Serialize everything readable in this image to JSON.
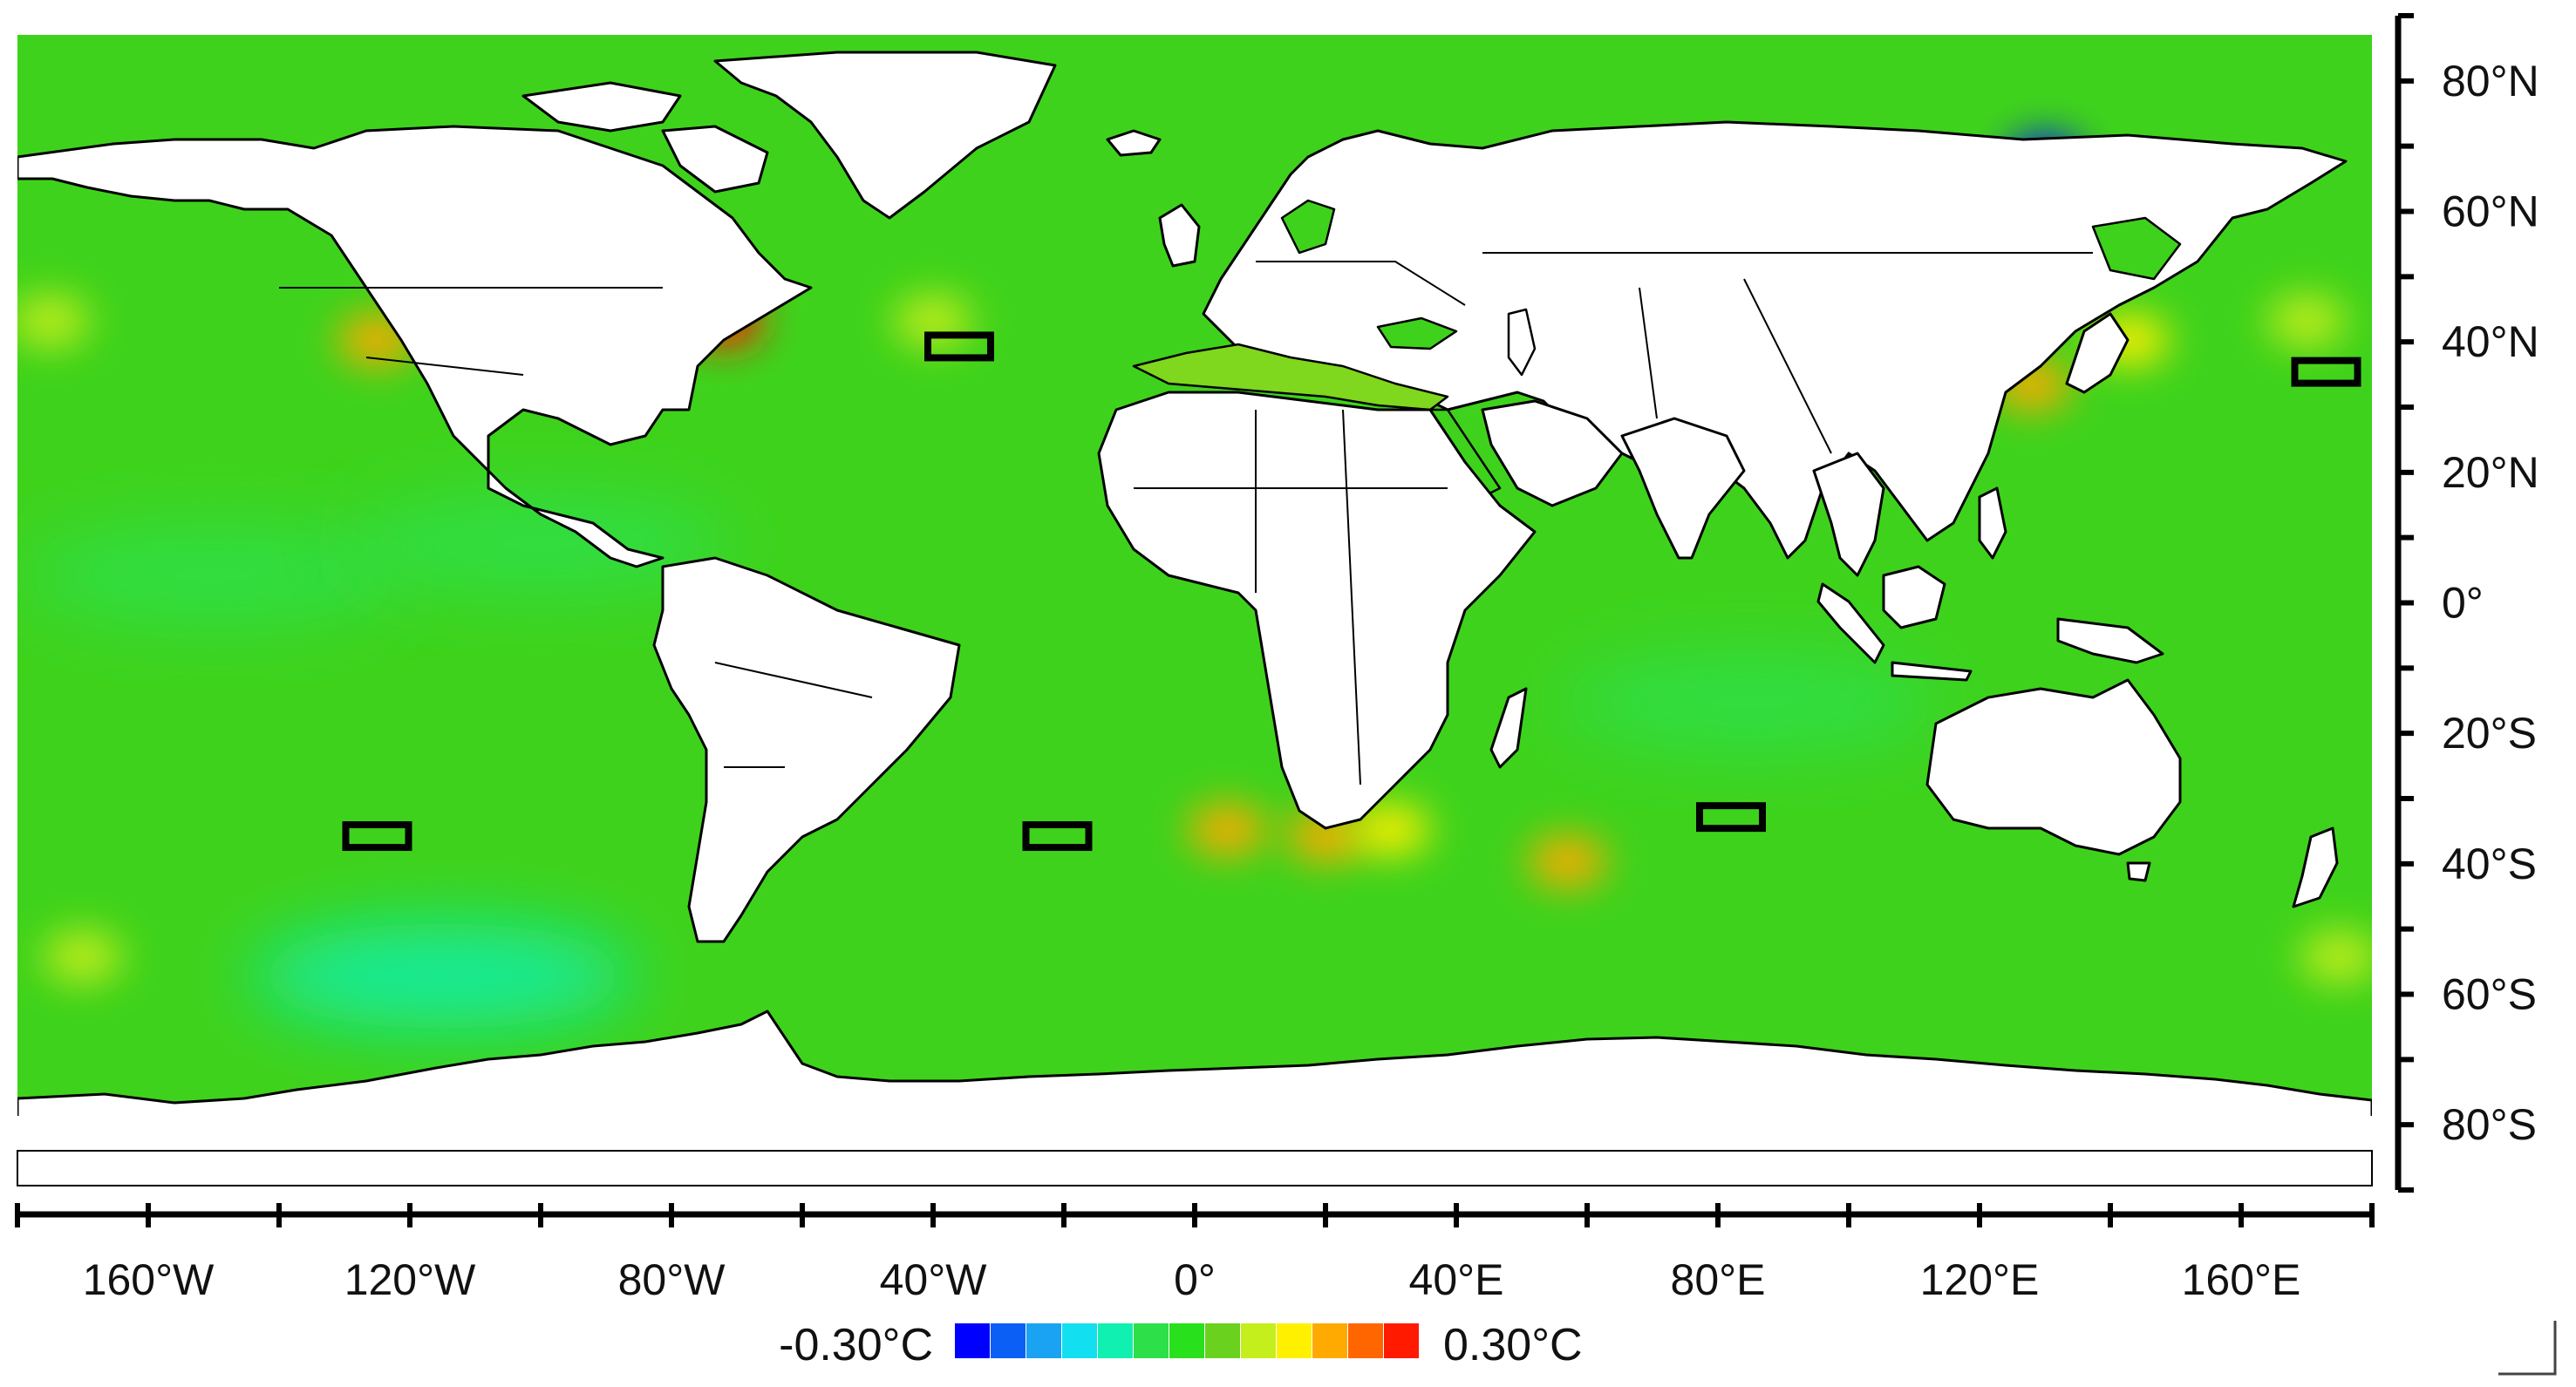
{
  "map": {
    "projection": "equirectangular",
    "extent": {
      "lon_min": -180,
      "lon_max": 180,
      "lat_min": -90,
      "lat_max": 90
    },
    "field": "sea surface temperature",
    "ocean_base_color": "#3fd21c",
    "land_color": "#ffffff",
    "coastline_color": "#000000",
    "hotspots": [
      {
        "lon": -72,
        "lat": 40,
        "level": 0.3
      },
      {
        "lon": -125,
        "lat": 37,
        "level": 0.18
      },
      {
        "lon": 128,
        "lat": 30,
        "level": 0.2
      },
      {
        "lon": 143,
        "lat": 37,
        "level": 0.15
      },
      {
        "lon": 5,
        "lat": -40,
        "level": 0.2
      },
      {
        "lon": 20,
        "lat": -41,
        "level": 0.2
      },
      {
        "lon": 30,
        "lat": -40,
        "level": 0.15
      },
      {
        "lon": 57,
        "lat": -45,
        "level": 0.18
      },
      {
        "lon": -40,
        "lat": 40,
        "level": 0.08
      },
      {
        "lon": -170,
        "lat": -60,
        "level": 0.1
      },
      {
        "lon": 175,
        "lat": -60,
        "level": 0.1
      },
      {
        "lon": -175,
        "lat": 40,
        "level": 0.08
      },
      {
        "lon": 170,
        "lat": 40,
        "level": 0.08
      },
      {
        "lon": 130,
        "lat": 65,
        "level": -0.3
      }
    ],
    "coldspots": [
      {
        "lon": -115,
        "lat": -63,
        "level": -0.12
      },
      {
        "lon": -150,
        "lat": 0,
        "level": -0.06
      },
      {
        "lon": 85,
        "lat": -20,
        "level": -0.06
      },
      {
        "lon": -100,
        "lat": 5,
        "level": -0.05
      }
    ],
    "boxes": [
      {
        "lon": -36,
        "lat": 36
      },
      {
        "lon": 173,
        "lat": 32
      },
      {
        "lon": -125,
        "lat": -41
      },
      {
        "lon": -21,
        "lat": -41
      },
      {
        "lon": 82,
        "lat": -38
      }
    ]
  },
  "axes": {
    "lat_labels": [
      {
        "value": 80,
        "text": "80°N"
      },
      {
        "value": 60,
        "text": "60°N"
      },
      {
        "value": 40,
        "text": "40°N"
      },
      {
        "value": 20,
        "text": "20°N"
      },
      {
        "value": 0,
        "text": "0°"
      },
      {
        "value": -20,
        "text": "20°S"
      },
      {
        "value": -40,
        "text": "40°S"
      },
      {
        "value": -60,
        "text": "60°S"
      },
      {
        "value": -80,
        "text": "80°S"
      }
    ],
    "lon_labels": [
      {
        "value": -160,
        "text": "160°W"
      },
      {
        "value": -120,
        "text": "120°W"
      },
      {
        "value": -80,
        "text": "80°W"
      },
      {
        "value": -40,
        "text": "40°W"
      },
      {
        "value": 0,
        "text": "0°"
      },
      {
        "value": 40,
        "text": "40°E"
      },
      {
        "value": 80,
        "text": "80°E"
      },
      {
        "value": 120,
        "text": "120°E"
      },
      {
        "value": 160,
        "text": "160°E"
      }
    ]
  },
  "colorbar": {
    "min_label": "-0.30°C",
    "max_label": "0.30°C",
    "min": -0.3,
    "max": 0.3,
    "colors": [
      "#0000ff",
      "#0b5ff5",
      "#1aa3f2",
      "#12e0f0",
      "#10f0b0",
      "#2de04a",
      "#29e01c",
      "#6ad21e",
      "#c4ee1c",
      "#fff000",
      "#ffaa00",
      "#ff6600",
      "#ff1a00"
    ]
  }
}
